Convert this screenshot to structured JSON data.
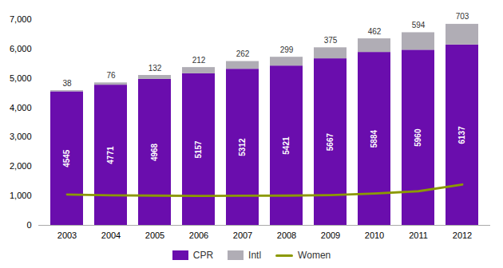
{
  "chart_data": {
    "type": "bar",
    "stacked": true,
    "categories": [
      "2003",
      "2004",
      "2005",
      "2006",
      "2007",
      "2008",
      "2009",
      "2010",
      "2011",
      "2012"
    ],
    "series": [
      {
        "name": "CPR",
        "color": "#6a0dad",
        "data_labels": true,
        "values": [
          4545,
          4771,
          4968,
          5157,
          5312,
          5421,
          5667,
          5884,
          5960,
          6137
        ]
      },
      {
        "name": "Intl",
        "color": "#b0adb5",
        "data_labels": true,
        "values": [
          38,
          76,
          132,
          212,
          262,
          299,
          375,
          462,
          594,
          703
        ]
      },
      {
        "name": "Women",
        "type": "line",
        "color": "#8b9900",
        "data_labels": false,
        "values": [
          1050,
          1020,
          1010,
          1000,
          1005,
          1010,
          1030,
          1080,
          1160,
          1390
        ]
      }
    ],
    "ylim": [
      0,
      7000
    ],
    "yticks": [
      0,
      1000,
      2000,
      3000,
      4000,
      5000,
      6000,
      7000
    ],
    "grid": false,
    "legend": "bottom"
  }
}
